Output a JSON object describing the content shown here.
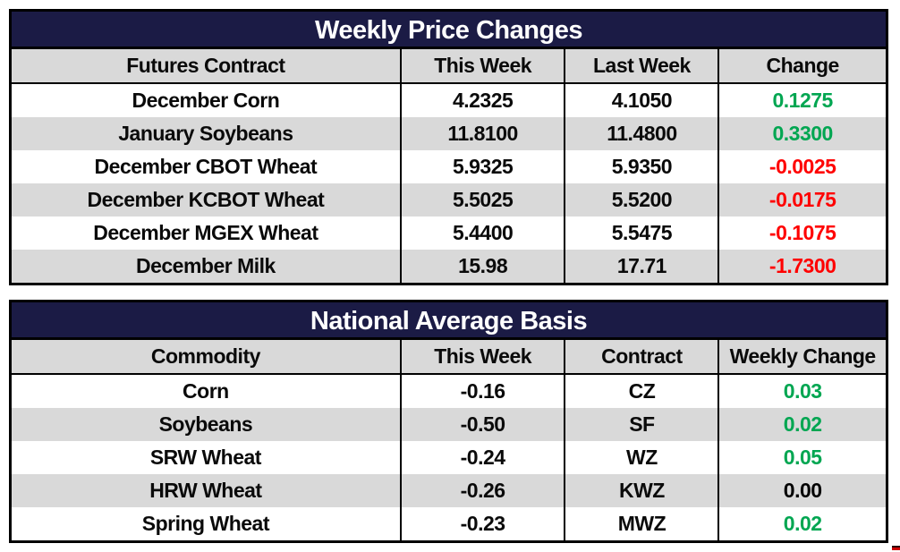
{
  "colors": {
    "navy_title_bg": "#1b1b45",
    "header_bg": "#d9d9d9",
    "alt_row_bg": "#d9d9d9",
    "green": "#00a651",
    "red": "#ff0000",
    "black": "#000000"
  },
  "tables": [
    {
      "title": "Weekly Price Changes",
      "columns": [
        "Futures Contract",
        "This Week",
        "Last Week",
        "Change"
      ],
      "rows": [
        {
          "cells": [
            "December Corn",
            "4.2325",
            "4.1050",
            "0.1275"
          ],
          "change": "green"
        },
        {
          "cells": [
            "January Soybeans",
            "11.8100",
            "11.4800",
            "0.3300"
          ],
          "change": "green"
        },
        {
          "cells": [
            "December CBOT Wheat",
            "5.9325",
            "5.9350",
            "-0.0025"
          ],
          "change": "red"
        },
        {
          "cells": [
            "December KCBOT Wheat",
            "5.5025",
            "5.5200",
            "-0.0175"
          ],
          "change": "red"
        },
        {
          "cells": [
            "December MGEX Wheat",
            "5.4400",
            "5.5475",
            "-0.1075"
          ],
          "change": "red"
        },
        {
          "cells": [
            "December Milk",
            "15.98",
            "17.71",
            "-1.7300"
          ],
          "change": "red"
        }
      ]
    },
    {
      "title": "National Average Basis",
      "columns": [
        "Commodity",
        "This Week",
        "Contract",
        "Weekly Change"
      ],
      "rows": [
        {
          "cells": [
            "Corn",
            "-0.16",
            "CZ",
            "0.03"
          ],
          "change": "green"
        },
        {
          "cells": [
            "Soybeans",
            "-0.50",
            "SF",
            "0.02"
          ],
          "change": "green"
        },
        {
          "cells": [
            "SRW Wheat",
            "-0.24",
            "WZ",
            "0.05"
          ],
          "change": "green"
        },
        {
          "cells": [
            "HRW Wheat",
            "-0.26",
            "KWZ",
            "0.00"
          ],
          "change": "black"
        },
        {
          "cells": [
            "Spring Wheat",
            "-0.23",
            "MWZ",
            "0.02"
          ],
          "change": "green"
        }
      ]
    }
  ]
}
